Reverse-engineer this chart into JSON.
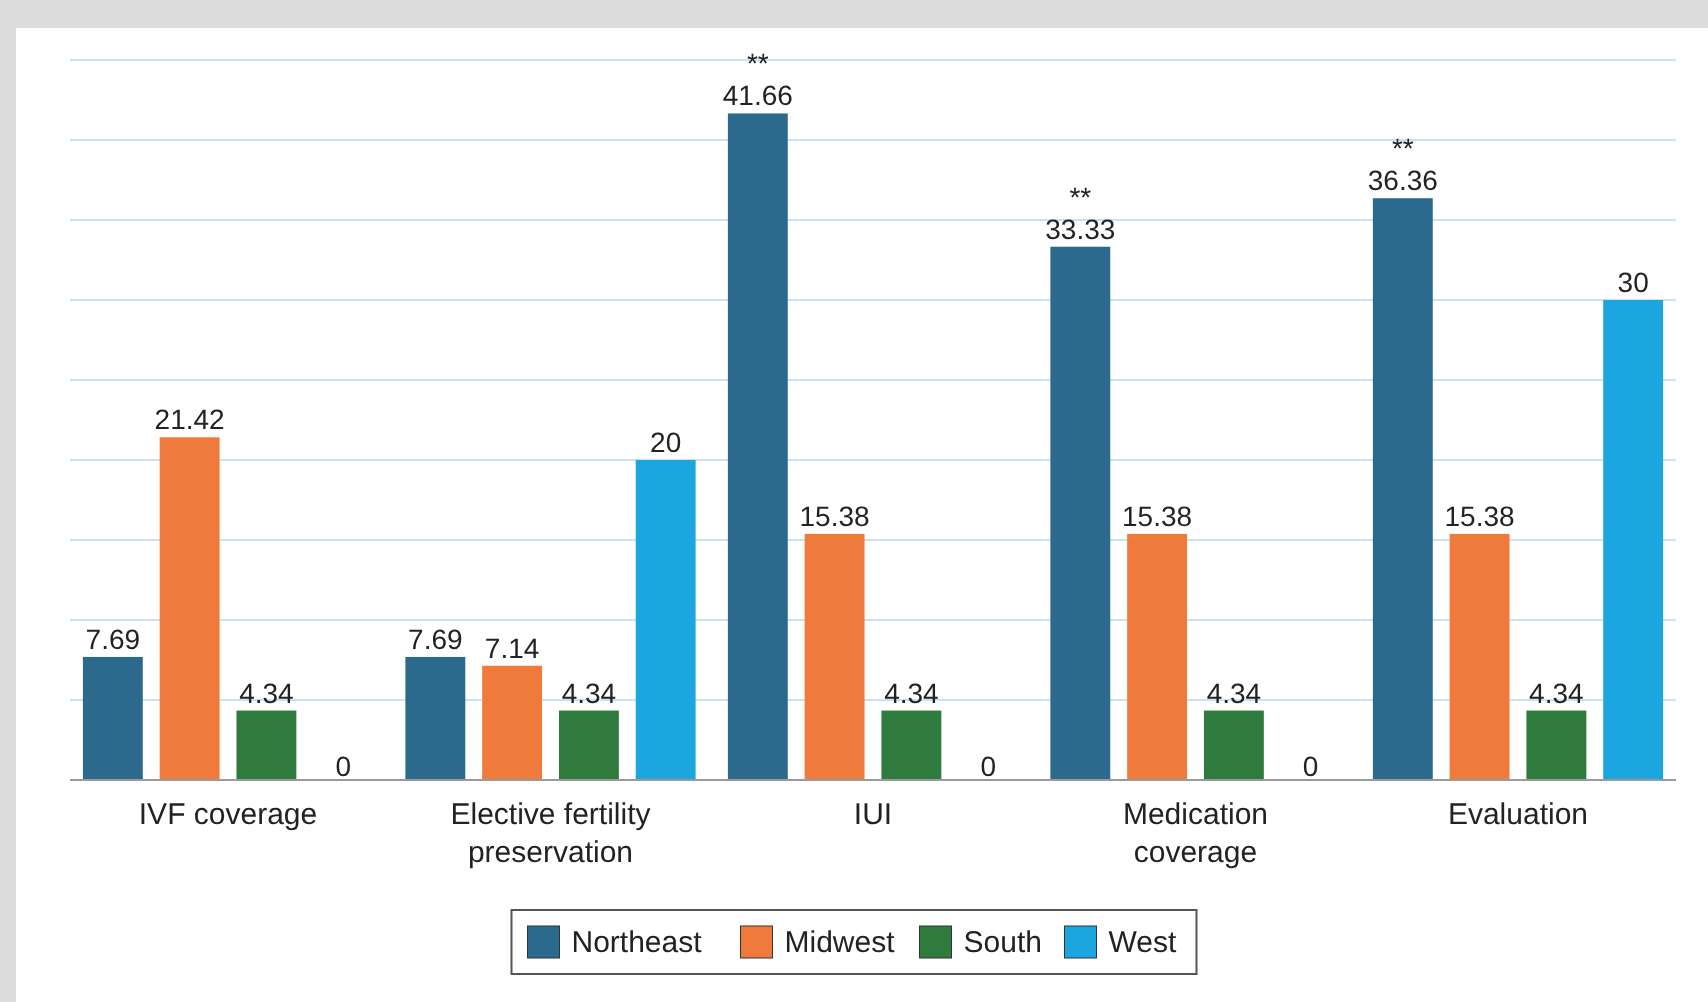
{
  "chart_data": {
    "type": "bar",
    "categories": [
      "IVF coverage",
      "Elective fertility preservation",
      "IUI",
      "Medication coverage",
      "Evaluation"
    ],
    "series": [
      {
        "name": "Northeast",
        "color": "#2b6a8c",
        "values": [
          7.69,
          7.69,
          41.66,
          33.33,
          36.36
        ],
        "value_labels": [
          "7.69",
          "7.69",
          "**\n41.66",
          "**\n33.33",
          "**\n36.36"
        ]
      },
      {
        "name": "Midwest",
        "color": "#f07a3c",
        "values": [
          21.42,
          7.14,
          15.38,
          15.38,
          15.38
        ],
        "value_labels": [
          "21.42",
          "7.14",
          "15.38",
          "15.38",
          "15.38"
        ]
      },
      {
        "name": "South",
        "color": "#2f7a3d",
        "values": [
          4.34,
          4.34,
          4.34,
          4.34,
          4.34
        ],
        "value_labels": [
          "4.34",
          "4.34",
          "4.34",
          "4.34",
          "4.34"
        ]
      },
      {
        "name": "West",
        "color": "#1ba6df",
        "values": [
          0,
          20,
          0,
          0,
          30
        ],
        "value_labels": [
          "0",
          "20",
          "0",
          "0",
          "30"
        ]
      }
    ],
    "ylim": [
      0,
      45
    ],
    "yticks": [
      {
        "value": 0,
        "label": null
      },
      {
        "value": 5,
        "label": null
      },
      {
        "value": 10,
        "label": null
      },
      {
        "value": 15,
        "label": null
      },
      {
        "value": 20,
        "label": null
      },
      {
        "value": 25,
        "label": null
      },
      {
        "value": 30,
        "label": null
      },
      {
        "value": 35,
        "label": null
      },
      {
        "value": 40,
        "label": null
      },
      {
        "value": 45,
        "label": null
      }
    ],
    "tick_labels": "x",
    "grid": "y",
    "legend": "bottom"
  }
}
